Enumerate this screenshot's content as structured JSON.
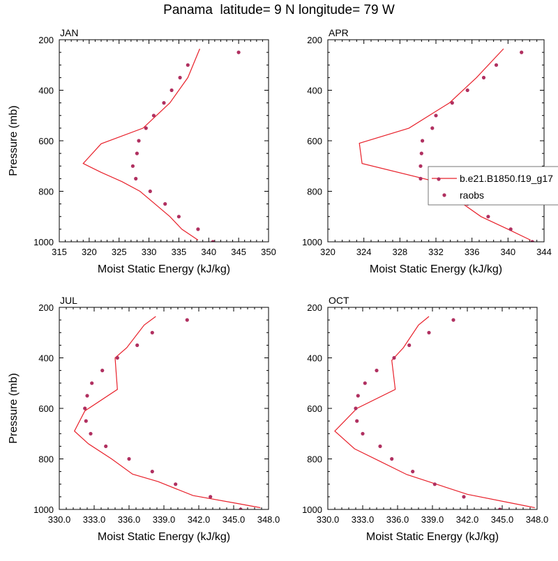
{
  "figure": {
    "title": "Panama  latitude= 9 N longitude= 79 W",
    "colors": {
      "model": "#e8202a",
      "obs": "#b03060",
      "frame": "#000000"
    }
  },
  "legend": {
    "model_label": "b.e21.B1850.f19_g17",
    "obs_label": "raobs"
  },
  "chart_data": [
    {
      "type": "line",
      "title": "JAN",
      "xlabel": "Moist Static Energy (kJ/kg)",
      "ylabel": "Pressure (mb)",
      "xlim": [
        315,
        350
      ],
      "ylim": [
        200,
        1000
      ],
      "y_reversed": true,
      "xticks": [
        315,
        320,
        325,
        330,
        335,
        340,
        345,
        350
      ],
      "xtick_labels": [
        "315",
        "320",
        "325",
        "330",
        "335",
        "340",
        "345",
        "350"
      ],
      "yticks": [
        200,
        400,
        600,
        800,
        1000
      ],
      "ytick_labels": [
        "200",
        "400",
        "600",
        "800",
        "1000"
      ],
      "series": [
        {
          "kind": "line",
          "x": [
            338.2,
            335.5,
            333.5,
            331.0,
            328.5,
            325.5,
            322.0,
            319.0,
            322.0,
            329.0,
            333.5,
            336.5,
            338.5
          ],
          "y": [
            993,
            950,
            900,
            850,
            800,
            762,
            725,
            690,
            612,
            550,
            450,
            350,
            236
          ]
        },
        {
          "kind": "points",
          "x": [
            340.7,
            338.2,
            335.0,
            332.7,
            330.2,
            327.8,
            327.3,
            328.0,
            328.3,
            329.5,
            330.8,
            332.5,
            333.8,
            335.2,
            336.5,
            345.0
          ],
          "y": [
            1000,
            950,
            900,
            850,
            800,
            750,
            700,
            650,
            600,
            550,
            500,
            450,
            400,
            350,
            300,
            250
          ]
        }
      ]
    },
    {
      "type": "line",
      "title": "APR",
      "xlabel": "Moist Static Energy (kJ/kg)",
      "ylabel": "",
      "xlim": [
        320,
        344
      ],
      "ylim": [
        200,
        1000
      ],
      "y_reversed": true,
      "xticks": [
        320,
        324,
        328,
        332,
        336,
        340,
        344
      ],
      "xtick_labels": [
        "320",
        "324",
        "328",
        "332",
        "336",
        "340",
        "344"
      ],
      "yticks": [
        200,
        400,
        600,
        800,
        1000
      ],
      "ytick_labels": [
        "200",
        "400",
        "600",
        "800",
        "1000"
      ],
      "series": [
        {
          "kind": "line",
          "x": [
            342.5,
            340.0,
            337.0,
            335.0,
            333.5,
            331.8,
            323.8,
            323.5,
            329.0,
            333.5,
            336.5,
            339.5
          ],
          "y": [
            993,
            950,
            900,
            850,
            800,
            760,
            690,
            610,
            550,
            450,
            350,
            236
          ]
        },
        {
          "kind": "points",
          "x": [
            342.7,
            340.3,
            337.8,
            335.5,
            332.5,
            330.3,
            330.3,
            330.4,
            330.5,
            331.6,
            332.0,
            333.8,
            335.5,
            337.3,
            338.7,
            341.5
          ],
          "y": [
            1000,
            950,
            900,
            850,
            800,
            750,
            700,
            650,
            600,
            550,
            500,
            450,
            400,
            350,
            300,
            250
          ]
        }
      ]
    },
    {
      "type": "line",
      "title": "JUL",
      "xlabel": "Moist Static Energy (kJ/kg)",
      "ylabel": "Pressure (mb)",
      "xlim": [
        330,
        348
      ],
      "ylim": [
        200,
        1000
      ],
      "y_reversed": true,
      "xticks": [
        330,
        333,
        336,
        339,
        342,
        345,
        348
      ],
      "xtick_labels": [
        "330.0",
        "333.0",
        "336.0",
        "339.0",
        "342.0",
        "345.0",
        "348.0"
      ],
      "yticks": [
        200,
        400,
        600,
        800,
        1000
      ],
      "ytick_labels": [
        "200",
        "400",
        "600",
        "800",
        "1000"
      ],
      "series": [
        {
          "kind": "line",
          "x": [
            347.3,
            345.5,
            341.5,
            338.5,
            336.3,
            334.5,
            332.5,
            331.3,
            332.2,
            335.0,
            334.8,
            335.8,
            337.3,
            338.3
          ],
          "y": [
            993,
            978,
            945,
            890,
            860,
            800,
            740,
            690,
            610,
            525,
            400,
            360,
            270,
            236
          ]
        },
        {
          "kind": "points",
          "x": [
            345.6,
            343.0,
            340.0,
            338.0,
            336.0,
            334.0,
            332.7,
            332.3,
            332.2,
            332.4,
            332.8,
            333.7,
            335.0,
            336.7,
            338.0,
            341.0
          ],
          "y": [
            1000,
            950,
            900,
            850,
            800,
            750,
            700,
            650,
            600,
            550,
            500,
            450,
            400,
            350,
            300,
            250
          ]
        }
      ]
    },
    {
      "type": "line",
      "title": "OCT",
      "xlabel": "Moist Static Energy (kJ/kg)",
      "ylabel": "",
      "xlim": [
        330,
        348
      ],
      "ylim": [
        200,
        1000
      ],
      "y_reversed": true,
      "xticks": [
        330,
        333,
        336,
        339,
        342,
        345,
        348
      ],
      "xtick_labels": [
        "330.0",
        "333.0",
        "336.0",
        "339.0",
        "342.0",
        "345.0",
        "348.0"
      ],
      "yticks": [
        200,
        400,
        600,
        800,
        1000
      ],
      "ytick_labels": [
        "200",
        "400",
        "600",
        "800",
        "1000"
      ],
      "series": [
        {
          "kind": "line",
          "x": [
            347.8,
            345.8,
            342.0,
            339.0,
            336.8,
            334.5,
            332.3,
            330.6,
            332.5,
            335.8,
            335.5,
            336.5,
            337.8,
            338.7
          ],
          "y": [
            993,
            975,
            940,
            895,
            862,
            810,
            760,
            690,
            600,
            525,
            410,
            360,
            270,
            236
          ]
        },
        {
          "kind": "points",
          "x": [
            344.8,
            341.7,
            339.2,
            337.3,
            335.5,
            334.5,
            333.0,
            332.5,
            332.4,
            332.6,
            333.2,
            334.2,
            335.7,
            337.0,
            338.7,
            340.8
          ],
          "y": [
            1000,
            950,
            900,
            850,
            800,
            750,
            700,
            650,
            600,
            550,
            500,
            450,
            400,
            350,
            300,
            250
          ]
        }
      ]
    }
  ]
}
